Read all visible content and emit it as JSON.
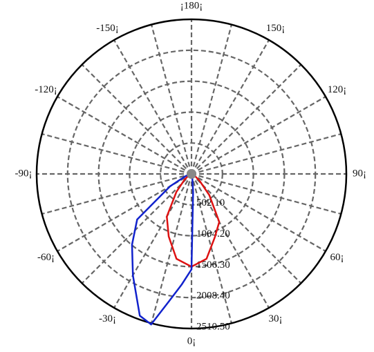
{
  "chart_data": {
    "type": "polar",
    "rlim": [
      0,
      2510.5
    ],
    "rticks": [
      {
        "value": 502.1,
        "label": "502.10"
      },
      {
        "value": 1004.2,
        "label": "1004.20"
      },
      {
        "value": 1506.3,
        "label": "1506.30"
      },
      {
        "value": 2008.4,
        "label": "2008.40"
      },
      {
        "value": 2510.5,
        "label": "2510.50"
      }
    ],
    "thetaticks": [
      {
        "value": 0,
        "label": "0¡"
      },
      {
        "value": 30,
        "label": "30¡"
      },
      {
        "value": 60,
        "label": "60¡"
      },
      {
        "value": 90,
        "label": "90¡"
      },
      {
        "value": 120,
        "label": "120¡"
      },
      {
        "value": 150,
        "label": "150¡"
      },
      {
        "value": 180,
        "label": "¡180¡"
      },
      {
        "value": -150,
        "label": "-150¡"
      },
      {
        "value": -120,
        "label": "-120¡"
      },
      {
        "value": -90,
        "label": "-90¡"
      },
      {
        "value": -60,
        "label": "-60¡"
      },
      {
        "value": -30,
        "label": "-30¡"
      }
    ],
    "series": [
      {
        "color": "#dd1111",
        "x": [
          -90,
          -80,
          -70,
          -60,
          -50,
          -40,
          -30,
          -20,
          -10,
          0,
          10,
          20,
          30,
          40,
          50,
          60,
          70,
          80,
          90
        ],
        "values": [
          10,
          15,
          30,
          60,
          150,
          380,
          800,
          1080,
          1400,
          1506,
          1400,
          1100,
          900,
          450,
          170,
          60,
          30,
          15,
          10
        ]
      },
      {
        "color": "#1122cc",
        "x": [
          -90,
          -80,
          -70,
          -60,
          -50,
          -40,
          -30,
          -20,
          -15,
          -10,
          -5,
          0,
          5,
          10,
          20,
          30,
          40,
          50,
          60,
          70,
          80,
          90
        ],
        "values": [
          20,
          40,
          100,
          400,
          1150,
          1500,
          1900,
          2450,
          2530,
          2100,
          1800,
          1550,
          300,
          80,
          40,
          30,
          20,
          15,
          10,
          10,
          10,
          10
        ]
      }
    ]
  }
}
